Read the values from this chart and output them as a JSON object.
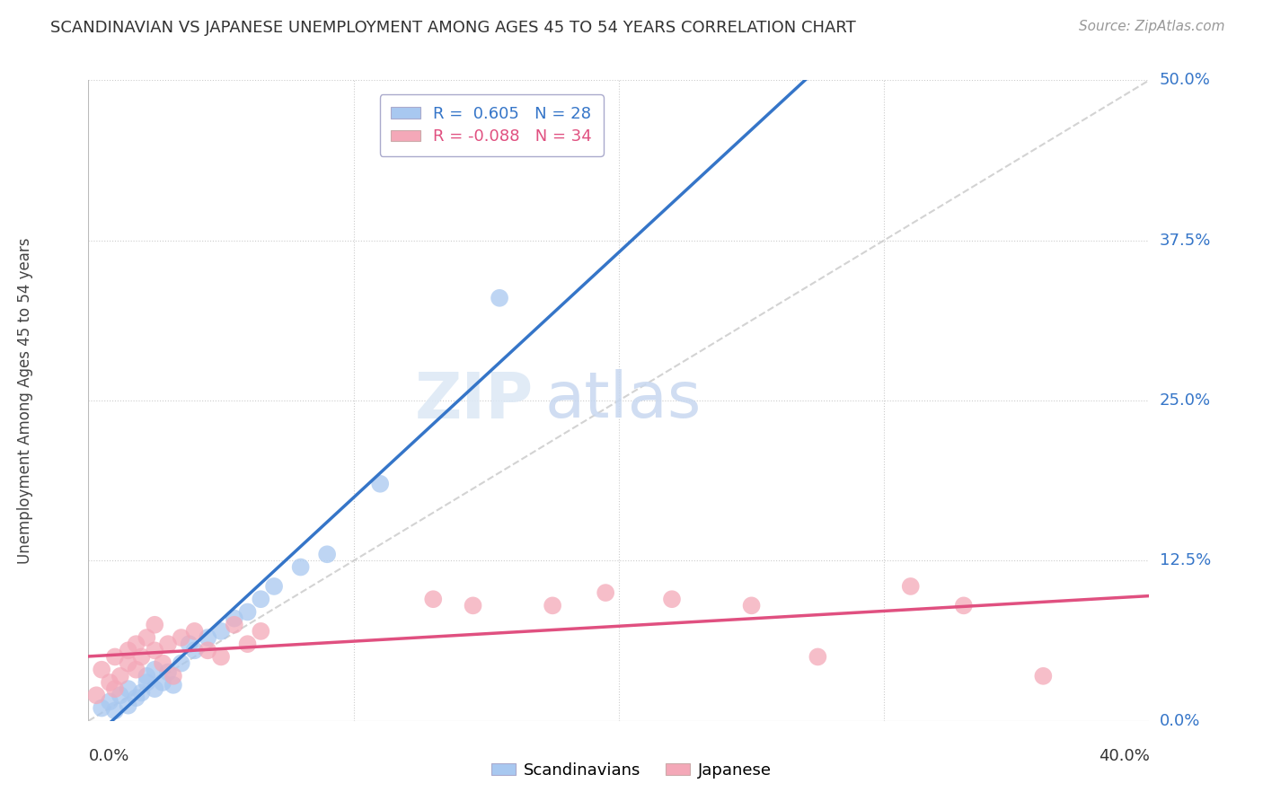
{
  "title": "SCANDINAVIAN VS JAPANESE UNEMPLOYMENT AMONG AGES 45 TO 54 YEARS CORRELATION CHART",
  "source": "Source: ZipAtlas.com",
  "ylabel": "Unemployment Among Ages 45 to 54 years",
  "xlim": [
    0.0,
    0.4
  ],
  "ylim": [
    0.0,
    0.5
  ],
  "xticks": [
    0.0,
    0.1,
    0.2,
    0.3,
    0.4
  ],
  "ytick_labels": [
    "0.0%",
    "12.5%",
    "25.0%",
    "37.5%",
    "50.0%"
  ],
  "yticks": [
    0.0,
    0.125,
    0.25,
    0.375,
    0.5
  ],
  "r_scandinavian": 0.605,
  "n_scandinavian": 28,
  "r_japanese": -0.088,
  "n_japanese": 34,
  "scand_color": "#a8c8f0",
  "japan_color": "#f4a8b8",
  "scand_line_color": "#3575c8",
  "japan_line_color": "#e05080",
  "ref_line_color": "#c8c8c8",
  "background_color": "#ffffff",
  "watermark_zip": "ZIP",
  "watermark_atlas": "atlas",
  "scand_x": [
    0.005,
    0.008,
    0.01,
    0.012,
    0.015,
    0.015,
    0.018,
    0.02,
    0.022,
    0.022,
    0.025,
    0.025,
    0.028,
    0.03,
    0.032,
    0.035,
    0.038,
    0.04,
    0.045,
    0.05,
    0.055,
    0.06,
    0.065,
    0.07,
    0.08,
    0.09,
    0.11,
    0.155
  ],
  "scand_y": [
    0.01,
    0.015,
    0.008,
    0.02,
    0.012,
    0.025,
    0.018,
    0.022,
    0.03,
    0.035,
    0.025,
    0.04,
    0.03,
    0.038,
    0.028,
    0.045,
    0.06,
    0.055,
    0.065,
    0.07,
    0.08,
    0.085,
    0.095,
    0.105,
    0.12,
    0.13,
    0.185,
    0.33
  ],
  "japan_x": [
    0.003,
    0.005,
    0.008,
    0.01,
    0.01,
    0.012,
    0.015,
    0.015,
    0.018,
    0.018,
    0.02,
    0.022,
    0.025,
    0.025,
    0.028,
    0.03,
    0.032,
    0.035,
    0.04,
    0.045,
    0.05,
    0.055,
    0.06,
    0.065,
    0.13,
    0.145,
    0.175,
    0.195,
    0.22,
    0.25,
    0.275,
    0.31,
    0.33,
    0.36
  ],
  "japan_y": [
    0.02,
    0.04,
    0.03,
    0.025,
    0.05,
    0.035,
    0.045,
    0.055,
    0.04,
    0.06,
    0.05,
    0.065,
    0.055,
    0.075,
    0.045,
    0.06,
    0.035,
    0.065,
    0.07,
    0.055,
    0.05,
    0.075,
    0.06,
    0.07,
    0.095,
    0.09,
    0.09,
    0.1,
    0.095,
    0.09,
    0.05,
    0.105,
    0.09,
    0.035
  ]
}
